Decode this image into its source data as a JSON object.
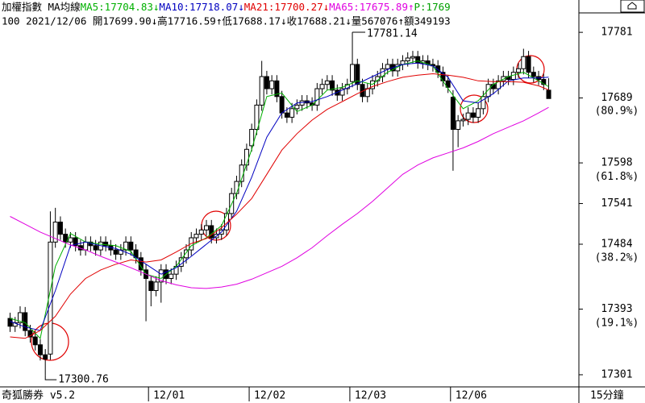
{
  "header": {
    "title": "加權指數 MA均線",
    "subtitle": "100 2021/12/06 開17699.90↓高17716.59↑低17688.17↓收17688.21↓量567076↑額349193",
    "extra": {
      "label": "P:1769",
      "color": "#00a000"
    }
  },
  "footer": {
    "software": "奇狐勝券 v5.2",
    "period": "15分鐘"
  },
  "chart_data": {
    "type": "candlestick",
    "xlim": [
      -2,
      113
    ],
    "ylim": [
      17284,
      17806
    ],
    "yticks": [
      17781,
      17689,
      17598,
      17541,
      17484,
      17393,
      17301
    ],
    "fib_ratios": [
      {
        "value": 80.9,
        "label": "(80.9%)"
      },
      {
        "value": 61.8,
        "label": "(61.8%)"
      },
      {
        "value": 38.2,
        "label": "(38.2%)"
      },
      {
        "value": 19.1,
        "label": "(19.1%)"
      }
    ],
    "xticks": [
      {
        "value": 27.5,
        "label": "12/01"
      },
      {
        "value": 47.5,
        "label": "12/02"
      },
      {
        "value": 67.5,
        "label": "12/03"
      },
      {
        "value": 87.5,
        "label": "12/06"
      }
    ],
    "up_color": "#ffffff",
    "down_color": "#000000",
    "edge_color": "#000000",
    "annotations": [
      {
        "x": 68,
        "value": 17781.14
      },
      {
        "x": 7,
        "value": 17300.76
      }
    ],
    "candles": {
      "x": [
        0,
        1,
        2,
        3,
        4,
        5,
        6,
        7,
        8,
        9,
        10,
        11,
        12,
        13,
        14,
        15,
        16,
        17,
        18,
        19,
        20,
        21,
        22,
        23,
        24,
        25,
        26,
        27,
        28,
        29,
        30,
        31,
        32,
        33,
        34,
        35,
        36,
        37,
        38,
        39,
        40,
        41,
        42,
        43,
        44,
        45,
        46,
        47,
        48,
        49,
        50,
        51,
        52,
        53,
        54,
        55,
        56,
        57,
        58,
        59,
        60,
        61,
        62,
        63,
        64,
        65,
        66,
        67,
        68,
        69,
        70,
        71,
        72,
        73,
        74,
        75,
        76,
        77,
        78,
        79,
        80,
        81,
        82,
        83,
        84,
        85,
        86,
        87,
        88,
        89,
        90,
        91,
        92,
        93,
        94,
        95,
        96,
        97,
        98,
        99,
        100,
        101,
        102,
        103,
        104,
        105,
        106,
        107
      ],
      "open": [
        17380,
        17369,
        17374,
        17388,
        17363,
        17354,
        17343,
        17329,
        17330,
        17487,
        17515,
        17498,
        17487,
        17493,
        17482,
        17476,
        17487,
        17482,
        17476,
        17487,
        17482,
        17476,
        17470,
        17476,
        17487,
        17476,
        17465,
        17448,
        17432,
        17419,
        17431,
        17448,
        17436,
        17442,
        17453,
        17465,
        17476,
        17493,
        17498,
        17504,
        17510,
        17493,
        17498,
        17504,
        17527,
        17555,
        17572,
        17595,
        17622,
        17645,
        17679,
        17719,
        17702,
        17713,
        17691,
        17668,
        17662,
        17674,
        17679,
        17685,
        17682,
        17679,
        17702,
        17708,
        17713,
        17700,
        17693,
        17702,
        17712,
        17736,
        17708,
        17691,
        17702,
        17713,
        17719,
        17730,
        17736,
        17727,
        17736,
        17741,
        17745,
        17747,
        17738,
        17741,
        17736,
        17734,
        17725,
        17713,
        17690,
        17645,
        17657,
        17659,
        17668,
        17662,
        17674,
        17691,
        17708,
        17702,
        17713,
        17719,
        17715,
        17725,
        17730,
        17747,
        17725,
        17719,
        17715,
        17699.9
      ],
      "high": [
        17388,
        17382,
        17397,
        17396,
        17371,
        17362,
        17351,
        17337,
        17530,
        17535,
        17523,
        17506,
        17501,
        17501,
        17490,
        17495,
        17495,
        17490,
        17495,
        17495,
        17490,
        17484,
        17484,
        17495,
        17495,
        17484,
        17473,
        17456,
        17440,
        17439,
        17456,
        17456,
        17450,
        17461,
        17473,
        17484,
        17501,
        17506,
        17512,
        17518,
        17518,
        17506,
        17512,
        17535,
        17563,
        17580,
        17603,
        17625,
        17653,
        17687,
        17741,
        17727,
        17721,
        17721,
        17699,
        17676,
        17682,
        17687,
        17693,
        17693,
        17690,
        17710,
        17716,
        17721,
        17721,
        17708,
        17710,
        17716,
        17781.14,
        17744,
        17716,
        17710,
        17721,
        17727,
        17738,
        17744,
        17744,
        17744,
        17749,
        17753,
        17755,
        17755,
        17749,
        17749,
        17744,
        17742,
        17733,
        17721,
        17700,
        17665,
        17667,
        17676,
        17676,
        17682,
        17699,
        17716,
        17716,
        17721,
        17727,
        17727,
        17733,
        17738,
        17758,
        17755,
        17733,
        17727,
        17723,
        17716.59
      ],
      "low": [
        17361,
        17361,
        17366,
        17355,
        17346,
        17335,
        17321,
        17300.76,
        17322,
        17479,
        17490,
        17479,
        17479,
        17474,
        17468,
        17468,
        17474,
        17468,
        17468,
        17474,
        17468,
        17462,
        17462,
        17468,
        17468,
        17457,
        17440,
        17376,
        17397,
        17411,
        17402,
        17428,
        17428,
        17434,
        17445,
        17457,
        17468,
        17485,
        17490,
        17496,
        17485,
        17485,
        17490,
        17496,
        17519,
        17547,
        17564,
        17587,
        17614,
        17637,
        17671,
        17694,
        17694,
        17683,
        17660,
        17654,
        17654,
        17666,
        17671,
        17674,
        17671,
        17671,
        17694,
        17700,
        17692,
        17685,
        17685,
        17694,
        17704,
        17700,
        17683,
        17683,
        17694,
        17705,
        17711,
        17722,
        17719,
        17719,
        17728,
        17733,
        17737,
        17730,
        17730,
        17728,
        17726,
        17717,
        17705,
        17696,
        17587,
        17620,
        17649,
        17651,
        17654,
        17654,
        17666,
        17683,
        17694,
        17694,
        17705,
        17707,
        17707,
        17717,
        17722,
        17717,
        17711,
        17707,
        17700,
        17688.17
      ],
      "close": [
        17369,
        17374,
        17388,
        17363,
        17354,
        17343,
        17329,
        17323,
        17487,
        17515,
        17498,
        17487,
        17493,
        17482,
        17476,
        17487,
        17482,
        17476,
        17487,
        17482,
        17476,
        17470,
        17476,
        17487,
        17476,
        17465,
        17448,
        17436,
        17419,
        17431,
        17448,
        17436,
        17442,
        17453,
        17465,
        17476,
        17493,
        17498,
        17504,
        17510,
        17493,
        17498,
        17504,
        17527,
        17555,
        17572,
        17595,
        17617,
        17645,
        17679,
        17719,
        17702,
        17713,
        17691,
        17668,
        17662,
        17674,
        17679,
        17685,
        17682,
        17679,
        17702,
        17708,
        17713,
        17700,
        17693,
        17702,
        17708,
        17736,
        17708,
        17691,
        17702,
        17713,
        17719,
        17730,
        17736,
        17727,
        17736,
        17741,
        17745,
        17747,
        17738,
        17741,
        17736,
        17734,
        17725,
        17713,
        17704,
        17645,
        17657,
        17659,
        17668,
        17662,
        17674,
        17691,
        17708,
        17702,
        17713,
        17719,
        17715,
        17725,
        17730,
        17747,
        17725,
        17719,
        17715,
        17708,
        17688.21
      ]
    },
    "series": [
      {
        "type": "line",
        "label": "MA5:17704.83↓",
        "color": "#00b000",
        "x": [
          0,
          3,
          6,
          9,
          12,
          15,
          18,
          21,
          24,
          27,
          30,
          33,
          36,
          39,
          42,
          45,
          48,
          51,
          54,
          57,
          60,
          63,
          66,
          69,
          72,
          75,
          78,
          81,
          84,
          87,
          90,
          93,
          96,
          99,
          102,
          105,
          107
        ],
        "values": [
          17380,
          17374,
          17352,
          17453,
          17499,
          17487,
          17484,
          17482,
          17474,
          17442,
          17436,
          17453,
          17482,
          17493,
          17510,
          17555,
          17617,
          17691,
          17696,
          17670,
          17679,
          17700,
          17704,
          17713,
          17708,
          17725,
          17736,
          17741,
          17734,
          17702,
          17674,
          17685,
          17708,
          17719,
          17725,
          17713,
          17704.83
        ]
      },
      {
        "type": "line",
        "label": "MA10:17718.07↓",
        "color": "#0000c0",
        "x": [
          0,
          3,
          6,
          9,
          12,
          15,
          18,
          21,
          24,
          27,
          30,
          33,
          36,
          39,
          42,
          45,
          48,
          51,
          54,
          57,
          60,
          63,
          66,
          69,
          72,
          75,
          78,
          81,
          84,
          87,
          90,
          93,
          96,
          99,
          102,
          105,
          107
        ],
        "values": [
          17376,
          17368,
          17363,
          17419,
          17482,
          17487,
          17482,
          17478,
          17470,
          17456,
          17442,
          17451,
          17467,
          17484,
          17501,
          17530,
          17578,
          17634,
          17668,
          17682,
          17684,
          17691,
          17700,
          17709,
          17719,
          17729,
          17736,
          17738,
          17734,
          17718,
          17685,
          17682,
          17695,
          17713,
          17717,
          17717,
          17718.07
        ]
      },
      {
        "type": "line",
        "label": "MA21:17700.27↓",
        "color": "#e00000",
        "x": [
          0,
          3,
          6,
          9,
          12,
          15,
          18,
          21,
          24,
          27,
          30,
          33,
          36,
          39,
          42,
          45,
          48,
          51,
          54,
          57,
          60,
          63,
          66,
          69,
          72,
          75,
          78,
          81,
          84,
          87,
          90,
          93,
          96,
          99,
          102,
          105,
          107
        ],
        "values": [
          17354,
          17352,
          17363,
          17383,
          17414,
          17436,
          17448,
          17456,
          17462,
          17459,
          17462,
          17473,
          17485,
          17492,
          17507,
          17526,
          17548,
          17582,
          17616,
          17639,
          17658,
          17673,
          17684,
          17695,
          17705,
          17712,
          17718,
          17721,
          17723,
          17721,
          17718,
          17713,
          17712,
          17712,
          17711,
          17706,
          17700.27
        ]
      },
      {
        "type": "line",
        "label": "MA65:17675.89↑",
        "color": "#e000e0",
        "x": [
          0,
          3,
          6,
          9,
          12,
          15,
          18,
          21,
          24,
          27,
          30,
          33,
          36,
          39,
          42,
          45,
          48,
          51,
          54,
          57,
          60,
          63,
          66,
          69,
          72,
          75,
          78,
          81,
          84,
          87,
          90,
          93,
          96,
          99,
          102,
          105,
          107
        ],
        "values": [
          17523,
          17512,
          17501,
          17492,
          17483,
          17476,
          17467,
          17459,
          17451,
          17442,
          17433,
          17427,
          17423,
          17422,
          17424,
          17428,
          17435,
          17444,
          17453,
          17465,
          17479,
          17496,
          17512,
          17527,
          17544,
          17563,
          17582,
          17595,
          17605,
          17612,
          17619,
          17628,
          17639,
          17648,
          17657,
          17668,
          17675.89
        ]
      }
    ]
  }
}
